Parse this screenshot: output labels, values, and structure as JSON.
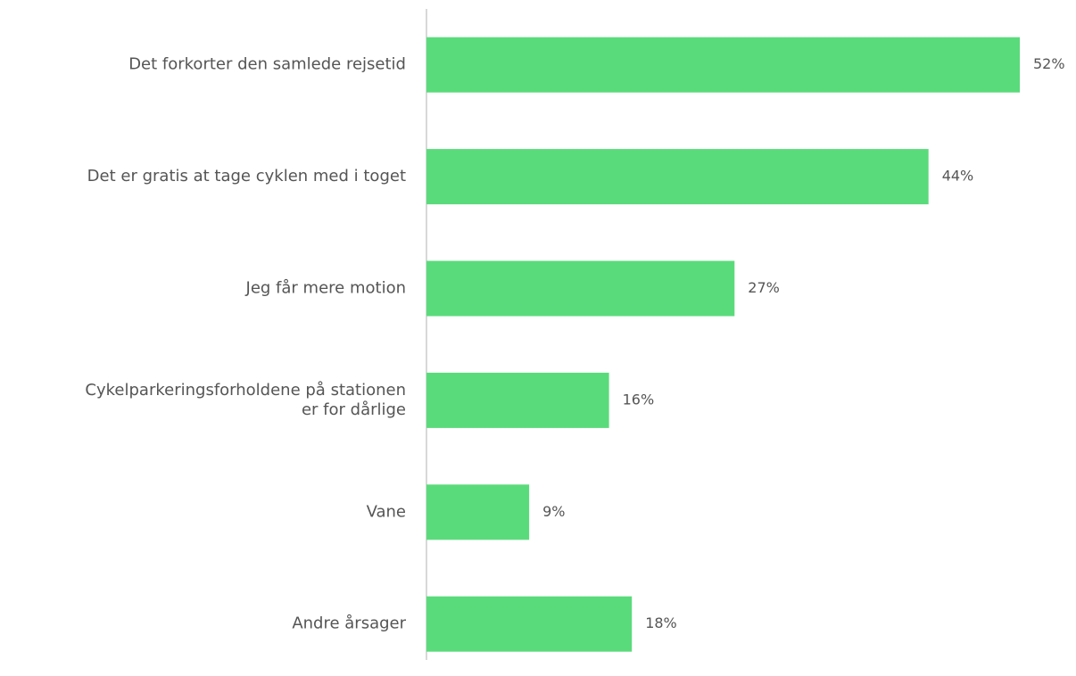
{
  "chart_data": {
    "type": "bar",
    "orientation": "horizontal",
    "categories": [
      "Det forkorter den samlede rejsetid",
      "Det er gratis at tage cyklen med i toget",
      "Jeg får mere motion",
      "Cykelparkeringsforholdene på stationen\ner for dårlige",
      "Vane",
      "Andre årsager"
    ],
    "values": [
      52,
      44,
      27,
      16,
      9,
      18
    ],
    "value_labels": [
      "52%",
      "44%",
      "27%",
      "16%",
      "9%",
      "18%"
    ],
    "color": "#5adb7b"
  }
}
